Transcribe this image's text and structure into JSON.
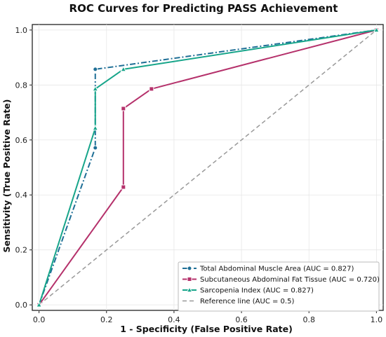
{
  "chart_data": {
    "type": "line",
    "title": "ROC Curves for Predicting PASS Achievement",
    "xlabel": "1 - Specificity (False Positive Rate)",
    "ylabel": "Sensitivity (True Positive Rate)",
    "xlim": [
      -0.02,
      1.02
    ],
    "ylim": [
      -0.02,
      1.02
    ],
    "xticks": [
      "0.0",
      "0.2",
      "0.4",
      "0.6",
      "0.8",
      "1.0"
    ],
    "yticks": [
      "0.0",
      "0.2",
      "0.4",
      "0.6",
      "0.8",
      "1.0"
    ],
    "grid": true,
    "legend_position": "bottom-right",
    "series": [
      {
        "name": "Total Abdominal Muscle Area (AUC = 0.827)",
        "color": "#1f6f96",
        "marker": "circle",
        "dash": "dash-dot",
        "points": [
          [
            0.0,
            0.0
          ],
          [
            0.1667,
            0.5714
          ],
          [
            0.1667,
            0.8571
          ],
          [
            1.0,
            1.0
          ]
        ]
      },
      {
        "name": "Subcutaneous Abdominal Fat Tissue (AUC = 0.720)",
        "color": "#b5316b",
        "marker": "square",
        "dash": "solid",
        "points": [
          [
            0.0,
            0.0
          ],
          [
            0.25,
            0.4286
          ],
          [
            0.25,
            0.7143
          ],
          [
            0.3333,
            0.7857
          ],
          [
            1.0,
            1.0
          ]
        ]
      },
      {
        "name": "Sarcopenia Index (AUC = 0.827)",
        "color": "#17a58a",
        "marker": "triangle",
        "dash": "solid",
        "points": [
          [
            0.0,
            0.0
          ],
          [
            0.1667,
            0.6429
          ],
          [
            0.1667,
            0.7857
          ],
          [
            0.25,
            0.8571
          ],
          [
            1.0,
            1.0
          ]
        ]
      },
      {
        "name": "Reference line (AUC = 0.5)",
        "color": "#999999",
        "marker": "none",
        "dash": "dashed",
        "points": [
          [
            0.0,
            0.0
          ],
          [
            1.0,
            1.0
          ]
        ]
      }
    ]
  }
}
